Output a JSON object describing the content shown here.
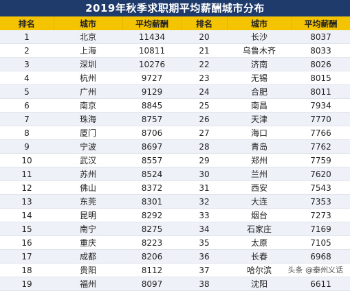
{
  "title": "2019年秋季求职期平均薪酬城市分布",
  "headers": [
    "排名",
    "城市",
    "平均薪酬",
    "排名",
    "城市",
    "平均薪酬"
  ],
  "rows": [
    {
      "rank_a": "1",
      "city_a": "北京",
      "salary_a": "11434",
      "rank_b": "20",
      "city_b": "长沙",
      "salary_b": "8037"
    },
    {
      "rank_a": "2",
      "city_a": "上海",
      "salary_a": "10811",
      "rank_b": "21",
      "city_b": "乌鲁木齐",
      "salary_b": "8033"
    },
    {
      "rank_a": "3",
      "city_a": "深圳",
      "salary_a": "10276",
      "rank_b": "22",
      "city_b": "济南",
      "salary_b": "8026"
    },
    {
      "rank_a": "4",
      "city_a": "杭州",
      "salary_a": "9727",
      "rank_b": "23",
      "city_b": "无锡",
      "salary_b": "8015"
    },
    {
      "rank_a": "5",
      "city_a": "广州",
      "salary_a": "9129",
      "rank_b": "24",
      "city_b": "合肥",
      "salary_b": "8011"
    },
    {
      "rank_a": "6",
      "city_a": "南京",
      "salary_a": "8845",
      "rank_b": "25",
      "city_b": "南昌",
      "salary_b": "7934"
    },
    {
      "rank_a": "7",
      "city_a": "珠海",
      "salary_a": "8757",
      "rank_b": "26",
      "city_b": "天津",
      "salary_b": "7770"
    },
    {
      "rank_a": "8",
      "city_a": "厦门",
      "salary_a": "8706",
      "rank_b": "27",
      "city_b": "海口",
      "salary_b": "7766"
    },
    {
      "rank_a": "9",
      "city_a": "宁波",
      "salary_a": "8697",
      "rank_b": "28",
      "city_b": "青岛",
      "salary_b": "7762"
    },
    {
      "rank_a": "10",
      "city_a": "武汉",
      "salary_a": "8557",
      "rank_b": "29",
      "city_b": "郑州",
      "salary_b": "7759"
    },
    {
      "rank_a": "11",
      "city_a": "苏州",
      "salary_a": "8524",
      "rank_b": "30",
      "city_b": "兰州",
      "salary_b": "7620"
    },
    {
      "rank_a": "12",
      "city_a": "佛山",
      "salary_a": "8372",
      "rank_b": "31",
      "city_b": "西安",
      "salary_b": "7543"
    },
    {
      "rank_a": "13",
      "city_a": "东莞",
      "salary_a": "8301",
      "rank_b": "32",
      "city_b": "大连",
      "salary_b": "7353"
    },
    {
      "rank_a": "14",
      "city_a": "昆明",
      "salary_a": "8292",
      "rank_b": "33",
      "city_b": "烟台",
      "salary_b": "7273"
    },
    {
      "rank_a": "15",
      "city_a": "南宁",
      "salary_a": "8275",
      "rank_b": "34",
      "city_b": "石家庄",
      "salary_b": "7169"
    },
    {
      "rank_a": "16",
      "city_a": "重庆",
      "salary_a": "8223",
      "rank_b": "35",
      "city_b": "太原",
      "salary_b": "7105"
    },
    {
      "rank_a": "17",
      "city_a": "成都",
      "salary_a": "8206",
      "rank_b": "36",
      "city_b": "长春",
      "salary_b": "6968"
    },
    {
      "rank_a": "18",
      "city_a": "贵阳",
      "salary_a": "8112",
      "rank_b": "37",
      "city_b": "哈尔滨",
      "salary_b": "6842"
    },
    {
      "rank_a": "19",
      "city_a": "福州",
      "salary_a": "8097",
      "rank_b": "38",
      "city_b": "沈阳",
      "salary_b": "6611"
    }
  ],
  "watermark": "头条 @泰州义话"
}
